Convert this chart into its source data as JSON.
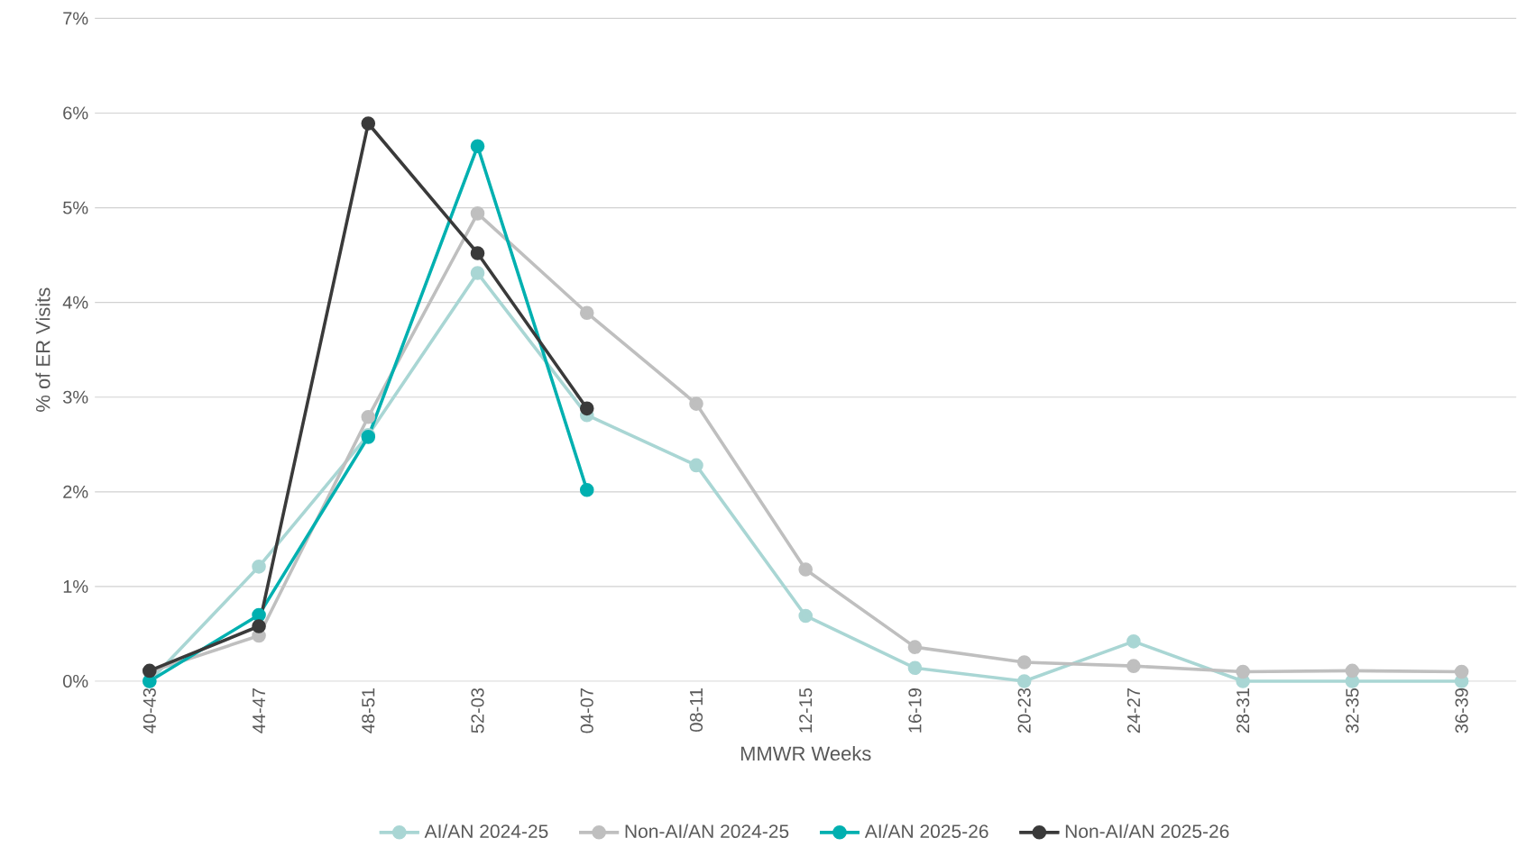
{
  "chart_data": {
    "type": "line",
    "xlabel": "MMWR Weeks",
    "ylabel": "% of ER Visits",
    "categories": [
      "40-43",
      "44-47",
      "48-51",
      "52-03",
      "04-07",
      "08-11",
      "12-15",
      "16-19",
      "20-23",
      "24-27",
      "28-31",
      "32-35",
      "36-39"
    ],
    "series": [
      {
        "name": "AI/AN 2024-25",
        "color": "#a9d6d4",
        "values": [
          0,
          1.21,
          2.6,
          4.31,
          2.81,
          2.28,
          0.69,
          0.14,
          0,
          0.42,
          0,
          0,
          0
        ]
      },
      {
        "name": "Non-AI/AN 2024-25",
        "color": "#bfbfbf",
        "values": [
          0.1,
          0.48,
          2.79,
          4.94,
          3.89,
          2.93,
          1.18,
          0.36,
          0.2,
          0.16,
          0.1,
          0.11,
          0.1
        ]
      },
      {
        "name": "AI/AN 2025-26",
        "color": "#00b0b0",
        "values": [
          0,
          0.7,
          2.58,
          5.65,
          2.02,
          null,
          null,
          null,
          null,
          null,
          null,
          null,
          null
        ]
      },
      {
        "name": "Non-AI/AN 2025-26",
        "color": "#3a3a3a",
        "values": [
          0.11,
          0.58,
          5.89,
          4.52,
          2.88,
          null,
          null,
          null,
          null,
          null,
          null,
          null,
          null
        ]
      }
    ],
    "ylim": [
      0,
      7
    ],
    "yticks": [
      {
        "value": 0,
        "label": "0%"
      },
      {
        "value": 1,
        "label": "1%"
      },
      {
        "value": 2,
        "label": "2%"
      },
      {
        "value": 3,
        "label": "3%"
      },
      {
        "value": 4,
        "label": "4%"
      },
      {
        "value": 5,
        "label": "5%"
      },
      {
        "value": 6,
        "label": "6%"
      },
      {
        "value": 7,
        "label": "7%"
      }
    ],
    "grid": "y",
    "legend": "bottom",
    "marker": "circle",
    "line_style": "solid"
  }
}
